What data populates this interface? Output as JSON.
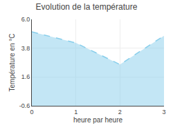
{
  "chart_data": {
    "type": "area",
    "title": "Evolution de la température",
    "xlabel": "heure par heure",
    "ylabel": "Température en °C",
    "x": [
      0,
      1,
      2,
      3
    ],
    "values": [
      5.05,
      4.2,
      2.55,
      4.75
    ],
    "color": "#87ceeb",
    "line_style": "dashed",
    "xlim": [
      0,
      3
    ],
    "xticks": [
      0,
      1,
      2,
      3
    ],
    "ylim": [
      -0.6,
      6.0
    ],
    "yticks": [
      -0.6,
      1.6,
      3.8,
      {
        "value": 6.0,
        "label": "6.0"
      }
    ],
    "grid": true
  }
}
